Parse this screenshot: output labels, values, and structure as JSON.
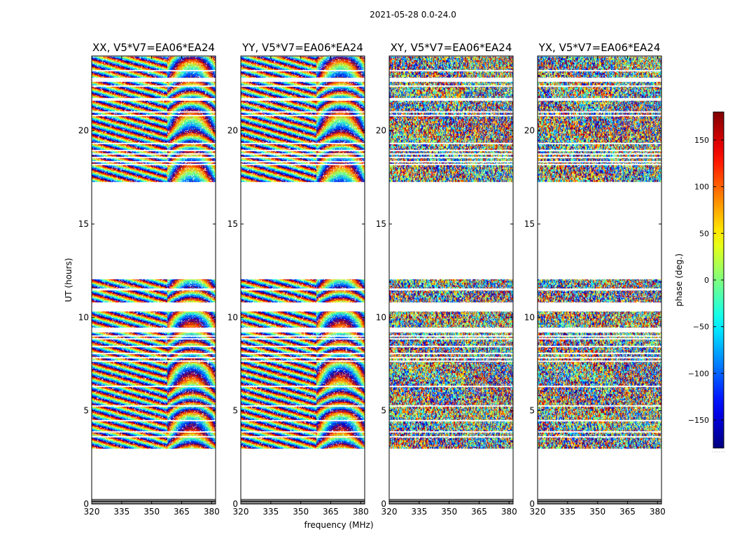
{
  "figure": {
    "suptitle": "2021-05-28 0.0-24.0",
    "xlabel": "frequency (MHz)",
    "ylabel": "UT (hours)",
    "colorbar_label": "phase (deg.)",
    "colorbar_footer": "......"
  },
  "chart_data": {
    "type": "heatmap",
    "description_kind": "dynamic spectrum of visibility phase",
    "xlim": [
      320,
      382
    ],
    "ylim": [
      0,
      24
    ],
    "xticks": [
      320,
      335,
      350,
      365,
      380
    ],
    "yticks": [
      0,
      5,
      10,
      15,
      20
    ],
    "colorbar": {
      "vmin": -180,
      "vmax": 180,
      "ticks": [
        150,
        100,
        50,
        0,
        -50,
        -100,
        -150
      ],
      "cmap": "jet"
    },
    "panels": [
      {
        "title": "XX, V5*V7=EA06*EA24",
        "fringe_strength": 1.0
      },
      {
        "title": "YY, V5*V7=EA06*EA24",
        "fringe_strength": 1.0
      },
      {
        "title": "XY, V5*V7=EA06*EA24",
        "fringe_strength": 0.15
      },
      {
        "title": "YX, V5*V7=EA06*EA24",
        "fringe_strength": 0.15
      }
    ],
    "data_time_ranges_hours": [
      [
        0.05,
        0.25
      ],
      [
        2.95,
        17.25
      ],
      [
        17.25,
        23.95
      ]
    ],
    "blank_time_ranges_hours": [
      [
        9.2,
        9.45
      ],
      [
        10.3,
        10.8
      ],
      [
        11.45,
        11.55
      ],
      [
        12.05,
        17.25
      ],
      [
        21.6,
        21.75
      ],
      [
        22.6,
        22.85
      ]
    ],
    "blank_lines_hours": [
      3.6,
      3.85,
      4.45,
      5.25,
      6.3,
      7.65,
      7.85,
      8.05,
      8.45,
      8.85,
      9.0,
      18.2,
      18.35,
      18.55,
      18.75,
      18.95,
      19.3,
      20.8,
      21.0,
      22.4,
      23.2
    ]
  }
}
